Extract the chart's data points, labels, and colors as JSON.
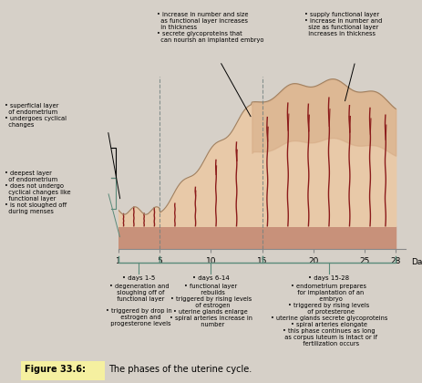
{
  "fig_bg": "#d6d0c8",
  "basal_color": "#c8917a",
  "functional_color": "#e8c9a8",
  "functional_top_color": "#d4a882",
  "spiral_color": "#8b1a1a",
  "bracket_color": "#5a8a7a",
  "days_ticks": [
    1,
    5,
    10,
    15,
    20,
    25,
    28
  ],
  "phase1_days": "days 1-5",
  "phase2_days": "days 6-14",
  "phase3_days": "days 15-28"
}
